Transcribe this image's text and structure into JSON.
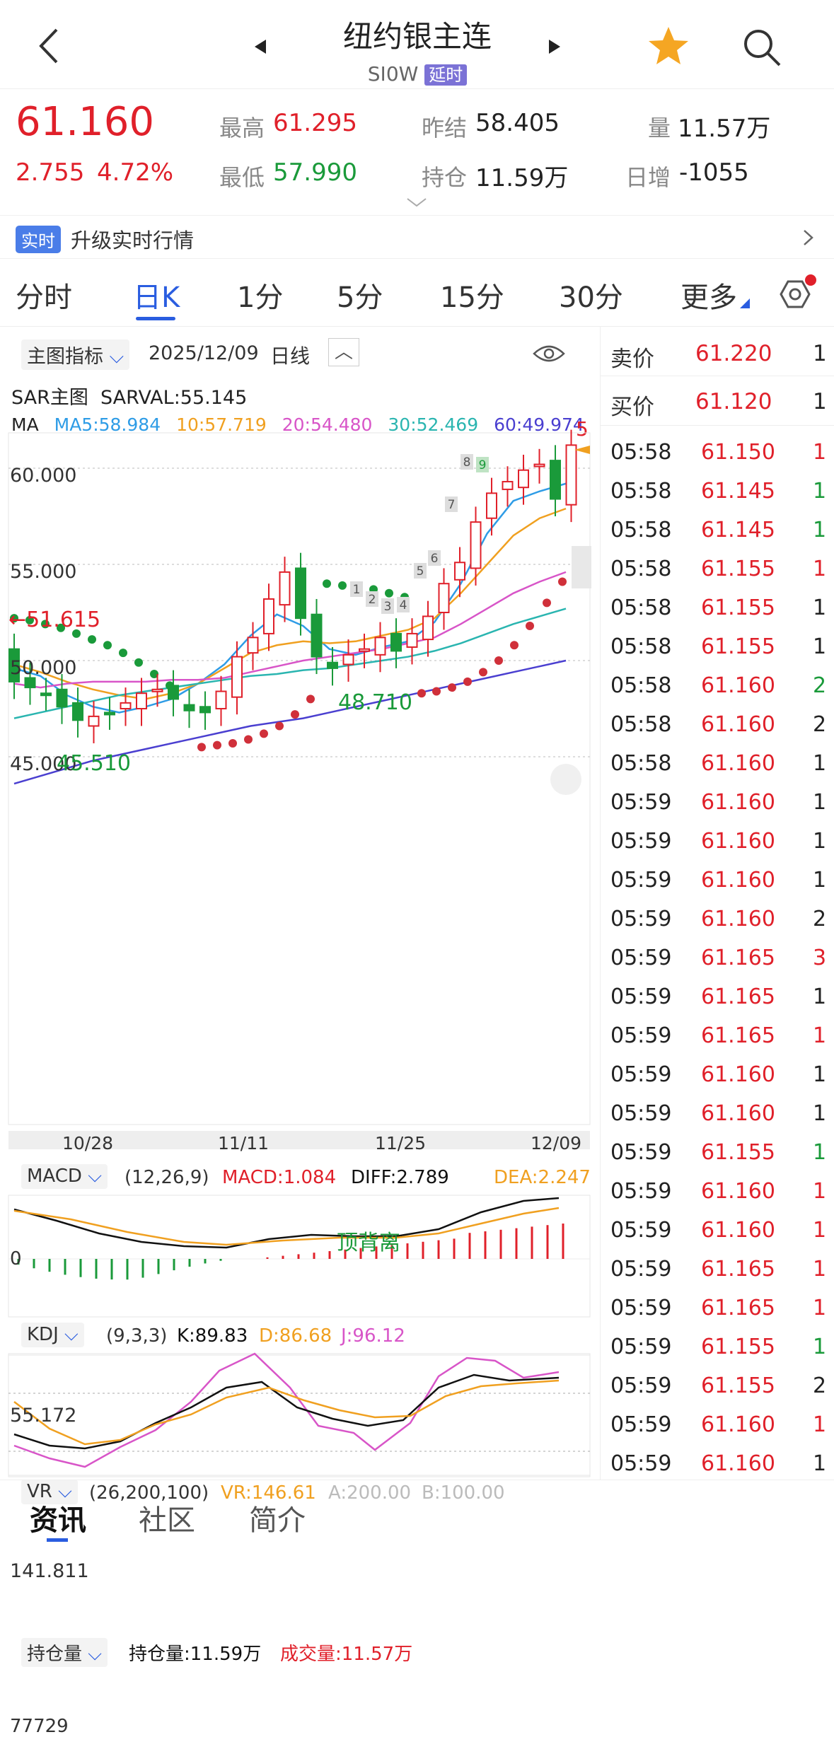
{
  "header": {
    "title": "纽约银主连",
    "code": "SI0W",
    "delay_badge": "延时"
  },
  "quote": {
    "last": "61.160",
    "change": "2.755",
    "pct": "4.72%",
    "high_label": "最高",
    "high": "61.295",
    "low_label": "最低",
    "low": "57.990",
    "prev_label": "昨结",
    "prev": "58.405",
    "oi_label": "持仓",
    "oi": "11.59万",
    "vol_label": "量",
    "vol": "11.57万",
    "daily_label": "日增",
    "daily": "-1055"
  },
  "banner": {
    "badge": "实时",
    "text": "升级实时行情"
  },
  "tabs": {
    "items": [
      "分时",
      "日K",
      "1分",
      "5分",
      "15分",
      "30分",
      "更多"
    ],
    "active": "日K"
  },
  "chart": {
    "toolbar": {
      "indicator": "主图指标",
      "date": "2025/12/09",
      "period": "日线"
    },
    "sar": {
      "name": "SAR主图",
      "val": "SARVAL:55.145"
    },
    "ma": {
      "label": "MA",
      "ma5": "MA5:58.984",
      "ma10": "10:57.719",
      "ma20": "20:54.480",
      "ma30": "30:52.469",
      "ma60": "60:49.974"
    },
    "cut_label": "5",
    "y_labels": [
      "60.000",
      "55.000",
      "50.000",
      "45.000"
    ],
    "marks": {
      "left_sar": "←51.615",
      "low1": "45.510",
      "low2": "48.710",
      "nine": [
        "1",
        "2",
        "3",
        "4",
        "5",
        "6",
        "7",
        "8",
        "9"
      ]
    },
    "x_labels": [
      "10/28",
      "11/11",
      "11/25",
      "12/09"
    ],
    "colors": {
      "up": "#e0202a",
      "down": "#1a9a3a",
      "ma5": "#2e9ce6",
      "ma10": "#f0a020",
      "ma20": "#d855c8",
      "ma30": "#2ab5b0",
      "ma60": "#4a3fd0"
    }
  },
  "macd": {
    "name": "MACD",
    "params": "(12,26,9)",
    "macd": "MACD:1.084",
    "diff": "DIFF:2.789",
    "dea": "DEA:2.247",
    "zero": "0",
    "note": "顶背离"
  },
  "kdj": {
    "name": "KDJ",
    "params": "(9,3,3)",
    "k": "K:89.83",
    "d": "D:86.68",
    "j": "J:96.12",
    "level": "55.172"
  },
  "vr": {
    "name": "VR",
    "params": "(26,200,100)",
    "vr": "VR:146.61",
    "a": "A:200.00",
    "b": "B:100.00",
    "level": "141.811"
  },
  "oi_ind": {
    "name": "持仓量",
    "oi": "持仓量:11.59万",
    "vol": "成交量:11.57万",
    "level": "77729"
  },
  "orderbook": {
    "ask_label": "卖价",
    "ask": "61.220",
    "ask_qty": "1",
    "bid_label": "买价",
    "bid": "61.120",
    "bid_qty": "1",
    "ticks": [
      [
        "05:58",
        "61.150",
        "1",
        "r"
      ],
      [
        "05:58",
        "61.145",
        "1",
        "g"
      ],
      [
        "05:58",
        "61.145",
        "1",
        "g"
      ],
      [
        "05:58",
        "61.155",
        "1",
        "r"
      ],
      [
        "05:58",
        "61.155",
        "1",
        "k"
      ],
      [
        "05:58",
        "61.155",
        "1",
        "k"
      ],
      [
        "05:58",
        "61.160",
        "2",
        "g"
      ],
      [
        "05:58",
        "61.160",
        "2",
        "k"
      ],
      [
        "05:58",
        "61.160",
        "1",
        "k"
      ],
      [
        "05:59",
        "61.160",
        "1",
        "k"
      ],
      [
        "05:59",
        "61.160",
        "1",
        "k"
      ],
      [
        "05:59",
        "61.160",
        "1",
        "k"
      ],
      [
        "05:59",
        "61.160",
        "2",
        "k"
      ],
      [
        "05:59",
        "61.165",
        "3",
        "r"
      ],
      [
        "05:59",
        "61.165",
        "1",
        "k"
      ],
      [
        "05:59",
        "61.165",
        "1",
        "r"
      ],
      [
        "05:59",
        "61.160",
        "1",
        "k"
      ],
      [
        "05:59",
        "61.160",
        "1",
        "k"
      ],
      [
        "05:59",
        "61.155",
        "1",
        "g"
      ],
      [
        "05:59",
        "61.160",
        "1",
        "r"
      ],
      [
        "05:59",
        "61.160",
        "1",
        "r"
      ],
      [
        "05:59",
        "61.165",
        "1",
        "r"
      ],
      [
        "05:59",
        "61.165",
        "1",
        "r"
      ],
      [
        "05:59",
        "61.155",
        "1",
        "g"
      ],
      [
        "05:59",
        "61.155",
        "2",
        "k"
      ],
      [
        "05:59",
        "61.160",
        "1",
        "r"
      ],
      [
        "05:59",
        "61.160",
        "1",
        "k"
      ]
    ]
  },
  "bottom_tabs": [
    "资讯",
    "社区",
    "简介"
  ]
}
